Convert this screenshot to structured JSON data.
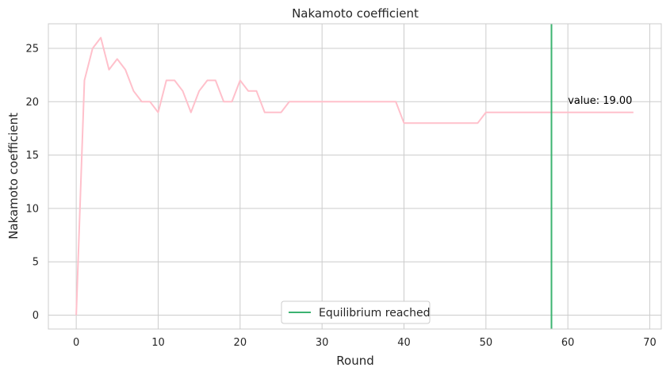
{
  "chart_data": {
    "type": "line",
    "title": "Nakamoto coefficient",
    "xlabel": "Round",
    "ylabel": "Nakamoto coefficient",
    "xlim": [
      -3.4,
      71.4
    ],
    "ylim": [
      -1.3,
      27.3
    ],
    "xticks": [
      0,
      10,
      20,
      30,
      40,
      50,
      60,
      70
    ],
    "yticks": [
      0,
      5,
      10,
      15,
      20,
      25
    ],
    "grid": true,
    "series": [
      {
        "color": "#ffc0cb",
        "x": [
          0,
          1,
          2,
          3,
          4,
          5,
          6,
          7,
          8,
          9,
          10,
          11,
          12,
          13,
          14,
          15,
          16,
          17,
          18,
          19,
          20,
          21,
          22,
          23,
          24,
          25,
          26,
          27,
          28,
          29,
          30,
          31,
          32,
          33,
          34,
          35,
          36,
          37,
          38,
          39,
          40,
          41,
          42,
          43,
          44,
          45,
          46,
          47,
          48,
          49,
          50,
          51,
          52,
          53,
          54,
          55,
          56,
          57,
          58,
          59,
          60,
          61,
          62,
          63,
          64,
          65,
          66,
          67,
          68
        ],
        "y": [
          0,
          22,
          25,
          26,
          23,
          24,
          23,
          21,
          20,
          20,
          19,
          22,
          22,
          21,
          19,
          21,
          22,
          22,
          20,
          20,
          22,
          21,
          21,
          19,
          19,
          19,
          20,
          20,
          20,
          20,
          20,
          20,
          20,
          20,
          20,
          20,
          20,
          20,
          20,
          20,
          18,
          18,
          18,
          18,
          18,
          18,
          18,
          18,
          18,
          18,
          19,
          19,
          19,
          19,
          19,
          19,
          19,
          19,
          19,
          19,
          19,
          19,
          19,
          19,
          19,
          19,
          19,
          19,
          19
        ]
      }
    ],
    "vline": {
      "x": 58,
      "name": "Equilibrium reached",
      "color": "#3cb371"
    },
    "annotation": {
      "text": "value: 19.00",
      "x": 60,
      "y": 19.8
    },
    "legend": {
      "placement": "bottom-center",
      "entries": [
        "Equilibrium reached"
      ]
    }
  }
}
